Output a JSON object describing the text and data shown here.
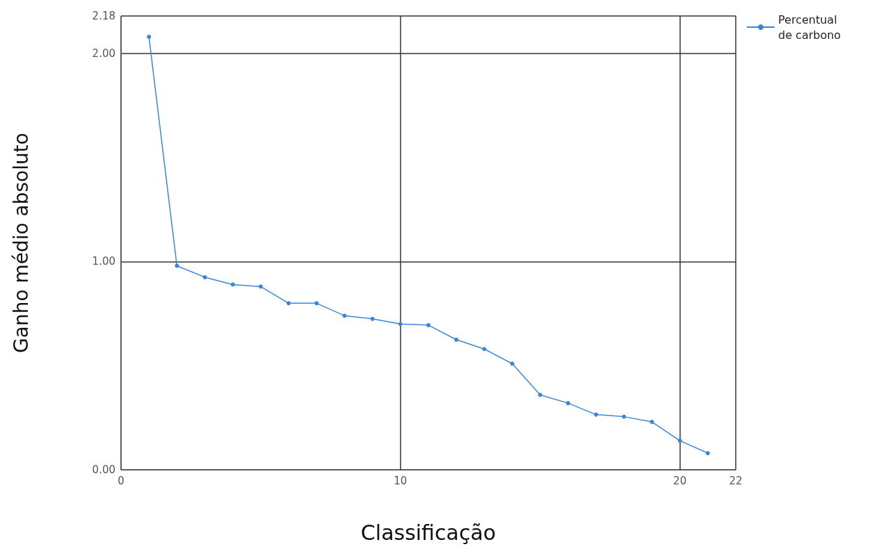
{
  "chart_data": {
    "type": "line",
    "xlabel": "Classificação",
    "ylabel": "Ganho médio absoluto",
    "series": [
      {
        "name": "Percentual de carbono",
        "color": "#3a87d9",
        "x": [
          1,
          2,
          3,
          4,
          5,
          6,
          7,
          8,
          9,
          10,
          11,
          12,
          13,
          14,
          15,
          16,
          17,
          18,
          19,
          20,
          21
        ],
        "values": [
          2.08,
          0.98,
          0.925,
          0.89,
          0.88,
          0.8,
          0.8,
          0.74,
          0.725,
          0.7,
          0.695,
          0.625,
          0.58,
          0.51,
          0.36,
          0.32,
          0.265,
          0.255,
          0.23,
          0.14,
          0.08
        ]
      }
    ],
    "xlim": [
      0,
      22
    ],
    "xticks": [
      0,
      10,
      20,
      22
    ],
    "ylim": [
      0,
      2.18
    ],
    "yticks": [
      {
        "value": 0,
        "label": "0.00"
      },
      {
        "value": 1,
        "label": "1.00"
      },
      {
        "value": 2,
        "label": "2.00"
      },
      {
        "value": 2.18,
        "label": "2.18"
      }
    ],
    "grid": true,
    "legend": "top right",
    "marker": "circle",
    "line_style": "solid"
  }
}
